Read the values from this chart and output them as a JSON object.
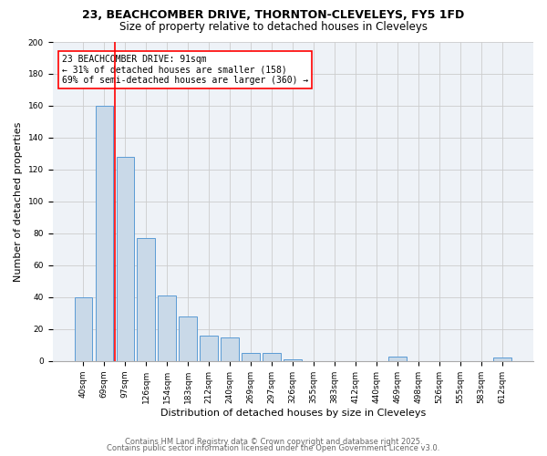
{
  "title1": "23, BEACHCOMBER DRIVE, THORNTON-CLEVELEYS, FY5 1FD",
  "title2": "Size of property relative to detached houses in Cleveleys",
  "xlabel": "Distribution of detached houses by size in Cleveleys",
  "ylabel": "Number of detached properties",
  "categories": [
    "40sqm",
    "69sqm",
    "97sqm",
    "126sqm",
    "154sqm",
    "183sqm",
    "212sqm",
    "240sqm",
    "269sqm",
    "297sqm",
    "326sqm",
    "355sqm",
    "383sqm",
    "412sqm",
    "440sqm",
    "469sqm",
    "498sqm",
    "526sqm",
    "555sqm",
    "583sqm",
    "612sqm"
  ],
  "values": [
    40,
    160,
    128,
    77,
    41,
    28,
    16,
    15,
    5,
    5,
    1,
    0,
    0,
    0,
    0,
    3,
    0,
    0,
    0,
    0,
    2
  ],
  "bar_color": "#c9d9e8",
  "bar_edge_color": "#5b9bd5",
  "annotation_text": "23 BEACHCOMBER DRIVE: 91sqm\n← 31% of detached houses are smaller (158)\n69% of semi-detached houses are larger (360) →",
  "vline_color": "red",
  "ylim": [
    0,
    200
  ],
  "yticks": [
    0,
    20,
    40,
    60,
    80,
    100,
    120,
    140,
    160,
    180,
    200
  ],
  "footer1": "Contains HM Land Registry data © Crown copyright and database right 2025.",
  "footer2": "Contains public sector information licensed under the Open Government Licence v3.0.",
  "bg_color": "#eef2f7",
  "title1_fontsize": 9,
  "title2_fontsize": 8.5,
  "xlabel_fontsize": 8,
  "ylabel_fontsize": 8,
  "tick_fontsize": 6.5,
  "footer_fontsize": 6,
  "ann_fontsize": 7
}
